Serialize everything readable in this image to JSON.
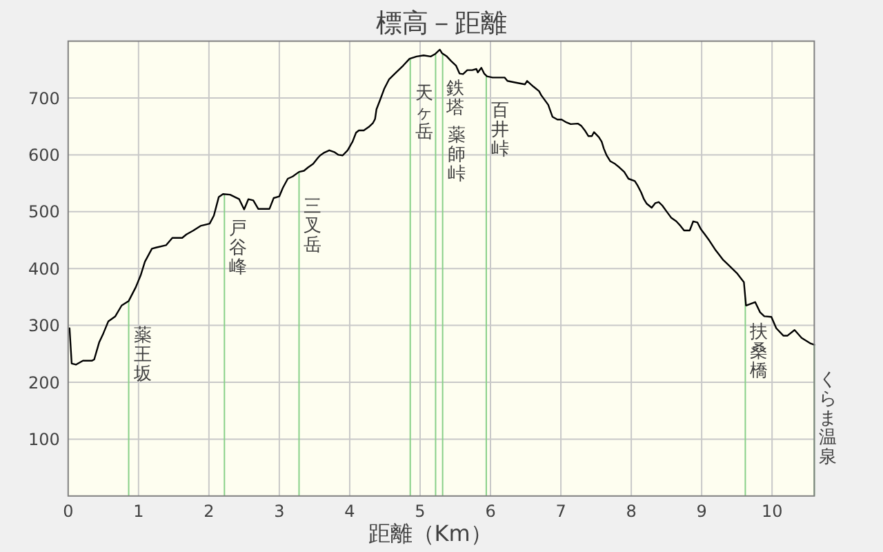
{
  "chart_data": {
    "type": "line",
    "title": "標高－距離",
    "xlabel": "距離（Km）",
    "color": "#000000",
    "line_style": "solid",
    "grid": true,
    "xlim": [
      0,
      10.6
    ],
    "ylim": [
      0,
      800
    ],
    "xticks": [
      0,
      1,
      2,
      3,
      4,
      5,
      6,
      7,
      8,
      9,
      10
    ],
    "yticks": [
      100,
      200,
      300,
      400,
      500,
      600,
      700
    ],
    "x": [
      0.02,
      0.05,
      0.11,
      0.21,
      0.34,
      0.37,
      0.44,
      0.5,
      0.57,
      0.67,
      0.76,
      0.86,
      0.96,
      1.03,
      1.09,
      1.19,
      1.25,
      1.39,
      1.48,
      1.62,
      1.68,
      1.78,
      1.88,
      2.01,
      2.07,
      2.14,
      2.2,
      2.3,
      2.43,
      2.5,
      2.56,
      2.63,
      2.7,
      2.86,
      2.92,
      3.0,
      3.05,
      3.12,
      3.19,
      3.28,
      3.35,
      3.41,
      3.48,
      3.55,
      3.58,
      3.64,
      3.71,
      3.78,
      3.84,
      3.9,
      3.97,
      4.04,
      4.09,
      4.13,
      4.2,
      4.27,
      4.33,
      4.36,
      4.38,
      4.43,
      4.49,
      4.56,
      4.66,
      4.76,
      4.85,
      4.95,
      5.05,
      5.15,
      5.21,
      5.28,
      5.31,
      5.38,
      5.44,
      5.51,
      5.56,
      5.61,
      5.67,
      5.74,
      5.8,
      5.82,
      5.87,
      5.91,
      5.95,
      6.03,
      6.2,
      6.24,
      6.36,
      6.49,
      6.52,
      6.61,
      6.69,
      6.72,
      6.82,
      6.88,
      6.95,
      7.01,
      7.08,
      7.14,
      7.24,
      7.29,
      7.34,
      7.39,
      7.44,
      7.47,
      7.54,
      7.58,
      7.61,
      7.65,
      7.7,
      7.77,
      7.83,
      7.9,
      7.96,
      8.05,
      8.09,
      8.14,
      8.18,
      8.22,
      8.29,
      8.34,
      8.39,
      8.44,
      8.51,
      8.57,
      8.64,
      8.7,
      8.75,
      8.83,
      8.88,
      8.94,
      8.99,
      9.04,
      9.11,
      9.2,
      9.3,
      9.4,
      9.5,
      9.6,
      9.63,
      9.76,
      9.83,
      9.89,
      9.99,
      10.06,
      10.16,
      10.22,
      10.32,
      10.42,
      10.55,
      10.6
    ],
    "values": [
      295,
      233,
      231,
      238,
      238,
      240,
      270,
      286,
      307,
      316,
      335,
      343,
      367,
      388,
      412,
      435,
      437,
      441,
      454,
      454,
      460,
      467,
      475,
      479,
      493,
      526,
      531,
      530,
      522,
      504,
      522,
      520,
      505,
      505,
      524,
      527,
      542,
      558,
      562,
      570,
      572,
      578,
      584,
      595,
      599,
      604,
      608,
      605,
      600,
      599,
      608,
      623,
      639,
      643,
      643,
      649,
      656,
      663,
      680,
      696,
      716,
      733,
      745,
      757,
      769,
      773,
      775,
      773,
      777,
      785,
      779,
      773,
      765,
      757,
      743,
      742,
      749,
      749,
      751,
      745,
      753,
      743,
      738,
      736,
      736,
      730,
      727,
      724,
      730,
      720,
      712,
      705,
      688,
      667,
      662,
      662,
      657,
      654,
      655,
      651,
      643,
      633,
      633,
      640,
      631,
      623,
      611,
      599,
      589,
      584,
      578,
      570,
      558,
      554,
      546,
      534,
      522,
      514,
      507,
      515,
      517,
      511,
      499,
      489,
      483,
      475,
      467,
      467,
      483,
      481,
      469,
      461,
      449,
      432,
      416,
      404,
      392,
      376,
      335,
      341,
      323,
      316,
      315,
      295,
      282,
      282,
      292,
      278,
      268,
      266
    ],
    "ref_lines": [
      {
        "axis": "x",
        "value": 0.86,
        "label": "薬王坂",
        "color": "#88d088"
      },
      {
        "axis": "x",
        "value": 2.22,
        "label": "戸谷峰",
        "color": "#88d088"
      },
      {
        "axis": "x",
        "value": 3.28,
        "label": "三叉岳",
        "color": "#88d088"
      },
      {
        "axis": "x",
        "value": 4.86,
        "label": "天ヶ岳",
        "color": "#88d088"
      },
      {
        "axis": "x",
        "value": 5.22,
        "label": "鉄塔",
        "color": "#88d088"
      },
      {
        "axis": "x",
        "value": 5.32,
        "label": "薬師峠",
        "color": "#88d088"
      },
      {
        "axis": "x",
        "value": 5.94,
        "label": "百井峠",
        "color": "#88d088"
      },
      {
        "axis": "x",
        "value": 9.62,
        "label": "扶桑橋",
        "color": "#88d088"
      },
      {
        "axis": "x",
        "value": 10.6,
        "label": "くらま温泉",
        "color": "#88d088"
      }
    ]
  }
}
